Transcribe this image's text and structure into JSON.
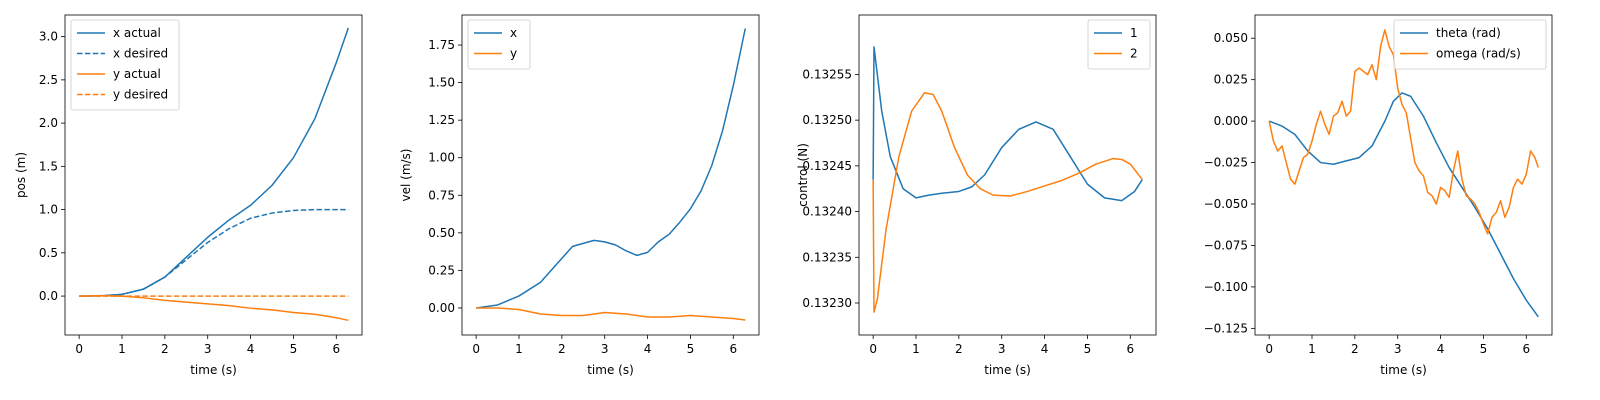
{
  "chart_data": [
    {
      "type": "line",
      "xlabel": "time (s)",
      "ylabel": "pos (m)",
      "xlim": [
        -0.33,
        6.6
      ],
      "ylim": [
        -0.45,
        3.25
      ],
      "xticks": [
        0,
        1,
        2,
        3,
        4,
        5,
        6
      ],
      "yticks": [
        0.0,
        0.5,
        1.0,
        1.5,
        2.0,
        2.5,
        3.0
      ],
      "ytick_labels": [
        "0.0",
        "0.5",
        "1.0",
        "1.5",
        "2.0",
        "2.5",
        "3.0"
      ],
      "legend": "top-left",
      "series": [
        {
          "name": "x actual",
          "color": "#1f77b4",
          "dash": "solid",
          "x": [
            0,
            0.5,
            1.0,
            1.5,
            2.0,
            2.5,
            3.0,
            3.5,
            4.0,
            4.5,
            5.0,
            5.5,
            6.0,
            6.28
          ],
          "y": [
            0,
            0.002,
            0.02,
            0.08,
            0.22,
            0.45,
            0.68,
            0.88,
            1.05,
            1.28,
            1.6,
            2.05,
            2.7,
            3.1
          ]
        },
        {
          "name": "x desired",
          "color": "#1f77b4",
          "dash": "dashed",
          "x": [
            0,
            0.5,
            1.0,
            1.5,
            2.0,
            2.5,
            3.0,
            3.5,
            4.0,
            4.5,
            5.0,
            5.5,
            6.0,
            6.28
          ],
          "y": [
            0,
            0.002,
            0.02,
            0.08,
            0.22,
            0.42,
            0.62,
            0.78,
            0.9,
            0.96,
            0.99,
            1.0,
            1.0,
            1.0
          ]
        },
        {
          "name": "y actual",
          "color": "#ff7f0e",
          "dash": "solid",
          "x": [
            0,
            0.5,
            1.0,
            1.5,
            2.0,
            2.5,
            3.0,
            3.5,
            4.0,
            4.5,
            5.0,
            5.5,
            6.0,
            6.28
          ],
          "y": [
            0,
            0.005,
            0.0,
            -0.02,
            -0.05,
            -0.07,
            -0.09,
            -0.11,
            -0.14,
            -0.16,
            -0.19,
            -0.21,
            -0.25,
            -0.28
          ]
        },
        {
          "name": "y desired",
          "color": "#ff7f0e",
          "dash": "dashed",
          "x": [
            0,
            6.28
          ],
          "y": [
            0,
            0
          ]
        }
      ]
    },
    {
      "type": "line",
      "xlabel": "time (s)",
      "ylabel": "vel (m/s)",
      "xlim": [
        -0.33,
        6.6
      ],
      "ylim": [
        -0.18,
        1.95
      ],
      "xticks": [
        0,
        1,
        2,
        3,
        4,
        5,
        6
      ],
      "yticks": [
        0.0,
        0.25,
        0.5,
        0.75,
        1.0,
        1.25,
        1.5,
        1.75
      ],
      "ytick_labels": [
        "0.00",
        "0.25",
        "0.50",
        "0.75",
        "1.00",
        "1.25",
        "1.50",
        "1.75"
      ],
      "legend": "top-left",
      "series": [
        {
          "name": "x",
          "color": "#1f77b4",
          "dash": "solid",
          "x": [
            0,
            0.5,
            1.0,
            1.5,
            2.0,
            2.25,
            2.5,
            2.75,
            3.0,
            3.25,
            3.5,
            3.75,
            4.0,
            4.25,
            4.5,
            4.75,
            5.0,
            5.25,
            5.5,
            5.75,
            6.0,
            6.28
          ],
          "y": [
            0,
            0.02,
            0.08,
            0.17,
            0.33,
            0.41,
            0.43,
            0.45,
            0.44,
            0.42,
            0.38,
            0.35,
            0.37,
            0.44,
            0.49,
            0.57,
            0.66,
            0.78,
            0.95,
            1.18,
            1.48,
            1.86
          ]
        },
        {
          "name": "y",
          "color": "#ff7f0e",
          "dash": "solid",
          "x": [
            0,
            0.5,
            1.0,
            1.5,
            2.0,
            2.5,
            3.0,
            3.5,
            4.0,
            4.5,
            5.0,
            5.5,
            6.0,
            6.28
          ],
          "y": [
            0,
            0.0,
            -0.01,
            -0.04,
            -0.05,
            -0.05,
            -0.03,
            -0.04,
            -0.06,
            -0.06,
            -0.05,
            -0.06,
            -0.07,
            -0.08
          ]
        }
      ]
    },
    {
      "type": "line",
      "xlabel": "time (s)",
      "ylabel": "control (N)",
      "xlim": [
        -0.33,
        6.6
      ],
      "ylim": [
        0.132265,
        0.132615
      ],
      "xticks": [
        0,
        1,
        2,
        3,
        4,
        5,
        6
      ],
      "yticks": [
        0.1323,
        0.13235,
        0.1324,
        0.13245,
        0.1325,
        0.13255
      ],
      "ytick_labels": [
        "0.13230",
        "0.13235",
        "0.13240",
        "0.13245",
        "0.13250",
        "0.13255"
      ],
      "legend": "top-right",
      "series": [
        {
          "name": "1",
          "color": "#1f77b4",
          "dash": "solid",
          "x": [
            0,
            0.02,
            0.2,
            0.4,
            0.7,
            1.0,
            1.3,
            1.6,
            2.0,
            2.3,
            2.6,
            3.0,
            3.4,
            3.8,
            4.2,
            4.6,
            5.0,
            5.4,
            5.8,
            6.1,
            6.28
          ],
          "y": [
            0.132435,
            0.13258,
            0.13251,
            0.13246,
            0.132425,
            0.132415,
            0.132418,
            0.13242,
            0.132422,
            0.132427,
            0.13244,
            0.13247,
            0.13249,
            0.132498,
            0.13249,
            0.13246,
            0.13243,
            0.132415,
            0.132412,
            0.132422,
            0.132435
          ]
        },
        {
          "name": "2",
          "color": "#ff7f0e",
          "dash": "solid",
          "x": [
            0,
            0.02,
            0.1,
            0.3,
            0.6,
            0.9,
            1.2,
            1.4,
            1.6,
            1.9,
            2.2,
            2.5,
            2.8,
            3.2,
            3.6,
            4.0,
            4.4,
            4.8,
            5.2,
            5.6,
            5.8,
            6.0,
            6.28
          ],
          "y": [
            0.132435,
            0.13229,
            0.132305,
            0.13238,
            0.13246,
            0.13251,
            0.13253,
            0.132528,
            0.13251,
            0.13247,
            0.13244,
            0.132425,
            0.132418,
            0.132417,
            0.132422,
            0.132428,
            0.132434,
            0.132442,
            0.132452,
            0.132458,
            0.132457,
            0.132452,
            0.132435
          ]
        }
      ]
    },
    {
      "type": "line",
      "xlabel": "time (s)",
      "ylabel": "",
      "xlim": [
        -0.33,
        6.6
      ],
      "ylim": [
        -0.129,
        0.064
      ],
      "xticks": [
        0,
        1,
        2,
        3,
        4,
        5,
        6
      ],
      "yticks": [
        -0.125,
        -0.1,
        -0.075,
        -0.05,
        -0.025,
        0.0,
        0.025,
        0.05
      ],
      "ytick_labels": [
        "−0.125",
        "−0.100",
        "−0.075",
        "−0.050",
        "−0.025",
        "0.000",
        "0.025",
        "0.050"
      ],
      "legend": "top-right",
      "series": [
        {
          "name": "theta (rad)",
          "color": "#1f77b4",
          "dash": "solid",
          "x": [
            0,
            0.3,
            0.6,
            0.9,
            1.2,
            1.5,
            1.8,
            2.1,
            2.4,
            2.7,
            2.9,
            3.1,
            3.3,
            3.6,
            3.9,
            4.2,
            4.5,
            4.8,
            5.1,
            5.4,
            5.7,
            6.0,
            6.28
          ],
          "y": [
            0,
            -0.003,
            -0.008,
            -0.018,
            -0.025,
            -0.026,
            -0.024,
            -0.022,
            -0.015,
            0.0,
            0.012,
            0.017,
            0.015,
            0.003,
            -0.013,
            -0.028,
            -0.04,
            -0.052,
            -0.065,
            -0.08,
            -0.095,
            -0.108,
            -0.118
          ]
        },
        {
          "name": "omega (rad/s)",
          "color": "#ff7f0e",
          "dash": "solid",
          "x": [
            0,
            0.1,
            0.2,
            0.3,
            0.4,
            0.5,
            0.6,
            0.7,
            0.8,
            0.9,
            1.0,
            1.1,
            1.2,
            1.3,
            1.4,
            1.5,
            1.6,
            1.7,
            1.8,
            1.9,
            2.0,
            2.1,
            2.2,
            2.3,
            2.4,
            2.5,
            2.6,
            2.7,
            2.8,
            2.9,
            3.0,
            3.1,
            3.2,
            3.3,
            3.4,
            3.5,
            3.6,
            3.7,
            3.8,
            3.9,
            4.0,
            4.1,
            4.2,
            4.3,
            4.4,
            4.5,
            4.6,
            4.7,
            4.8,
            4.9,
            5.0,
            5.1,
            5.2,
            5.3,
            5.4,
            5.5,
            5.6,
            5.7,
            5.8,
            5.9,
            6.0,
            6.1,
            6.2,
            6.28
          ],
          "y": [
            0,
            -0.012,
            -0.018,
            -0.015,
            -0.025,
            -0.035,
            -0.038,
            -0.03,
            -0.022,
            -0.02,
            -0.012,
            -0.002,
            0.006,
            -0.002,
            -0.008,
            0.003,
            0.005,
            0.012,
            0.003,
            0.006,
            0.03,
            0.032,
            0.03,
            0.028,
            0.034,
            0.025,
            0.045,
            0.055,
            0.045,
            0.04,
            0.02,
            0.01,
            0.005,
            -0.01,
            -0.025,
            -0.03,
            -0.033,
            -0.043,
            -0.045,
            -0.05,
            -0.04,
            -0.042,
            -0.046,
            -0.03,
            -0.018,
            -0.035,
            -0.045,
            -0.047,
            -0.05,
            -0.055,
            -0.062,
            -0.068,
            -0.058,
            -0.055,
            -0.048,
            -0.058,
            -0.052,
            -0.04,
            -0.035,
            -0.038,
            -0.032,
            -0.018,
            -0.022,
            -0.028
          ]
        }
      ]
    }
  ]
}
